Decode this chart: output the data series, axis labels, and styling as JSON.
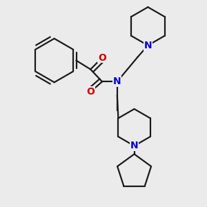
{
  "background_color": "#ebebeb",
  "bond_color": "#1a1a1a",
  "bond_width": 1.6,
  "atom_colors": {
    "N": "#0000cc",
    "O": "#cc0000",
    "C": "#1a1a1a"
  },
  "figsize": [
    3.0,
    3.0
  ],
  "dpi": 100
}
